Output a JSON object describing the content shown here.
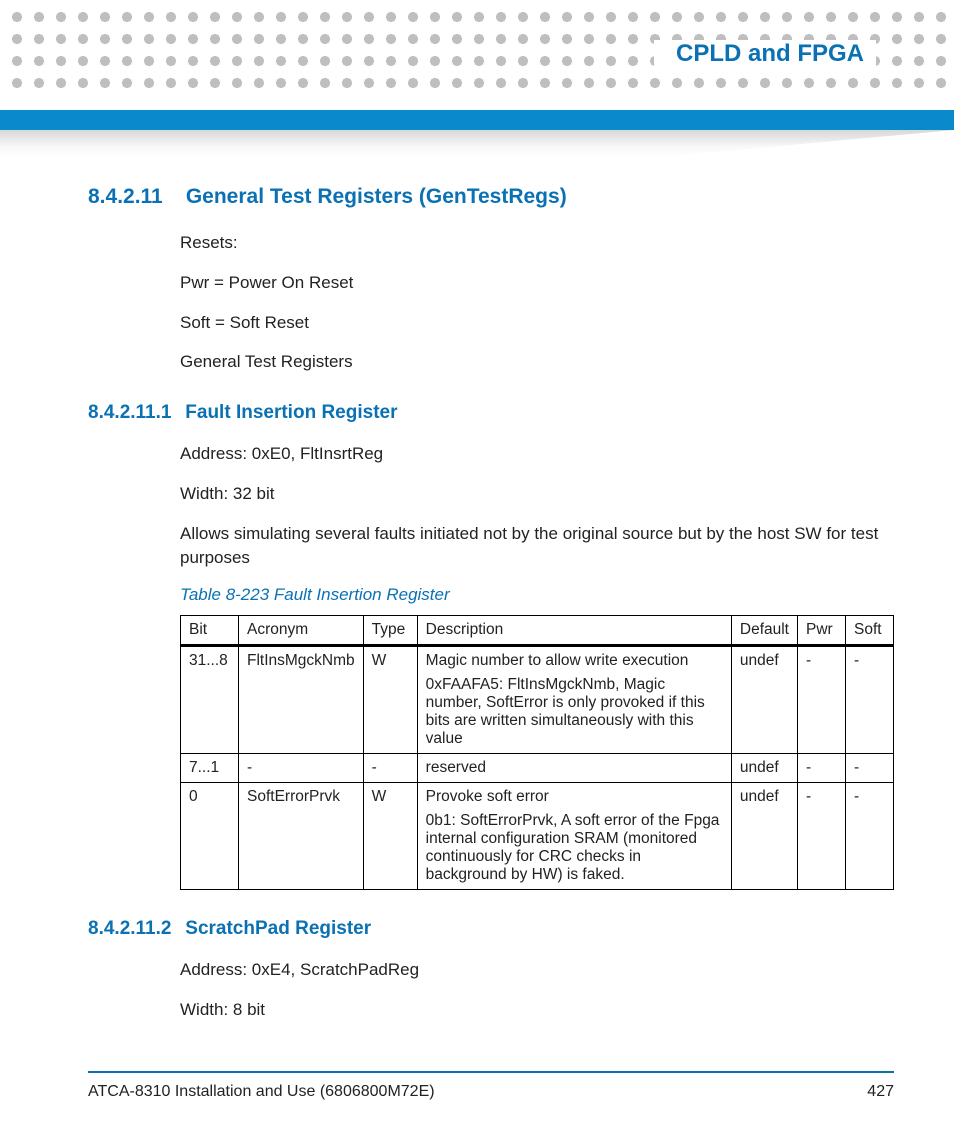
{
  "header": {
    "chapter_title": "CPLD and FPGA"
  },
  "section": {
    "number": "8.4.2.11",
    "title": "General Test Registers (GenTestRegs)",
    "paras": [
      "Resets:",
      "Pwr = Power On Reset",
      "Soft = Soft Reset",
      "General Test Registers"
    ]
  },
  "sub1": {
    "number": "8.4.2.11.1",
    "title": "Fault Insertion Register",
    "paras": [
      "Address: 0xE0, FltInsrtReg",
      "Width: 32 bit",
      "Allows simulating several faults initiated not by the original source but by the host SW for test purposes"
    ],
    "table_caption": "Table 8-223 Fault Insertion Register",
    "table": {
      "columns": [
        "Bit",
        "Acronym",
        "Type",
        "Description",
        "Default",
        "Pwr",
        "Soft"
      ],
      "rows": [
        {
          "bit": "31...8",
          "acronym": "FltInsMgckNmb",
          "type": "W",
          "desc": [
            "Magic number to allow write execution",
            "0xFAAFA5: FltInsMgckNmb, Magic number, SoftError is only provoked if this bits are written simultaneously with this value"
          ],
          "def": "undef",
          "pwr": "-",
          "soft": "-"
        },
        {
          "bit": "7...1",
          "acronym": "-",
          "type": "-",
          "desc": [
            "reserved"
          ],
          "def": "undef",
          "pwr": "-",
          "soft": "-"
        },
        {
          "bit": "0",
          "acronym": "SoftErrorPrvk",
          "type": "W",
          "desc": [
            "Provoke soft error",
            "0b1: SoftErrorPrvk, A soft error of the Fpga internal configuration SRAM (monitored continuously for CRC checks in background by HW) is faked."
          ],
          "def": "undef",
          "pwr": "-",
          "soft": "-"
        }
      ]
    }
  },
  "sub2": {
    "number": "8.4.2.11.2",
    "title": "ScratchPad Register",
    "paras": [
      "Address: 0xE4, ScratchPadReg",
      "Width: 8 bit"
    ]
  },
  "footer": {
    "doc_title": "ATCA-8310 Installation and Use (6806800M72E)",
    "page_number": "427"
  },
  "colors": {
    "accent": "#0a71b4",
    "bar": "#0a89cc",
    "dot": "#bfbfbf",
    "text": "#222222"
  }
}
